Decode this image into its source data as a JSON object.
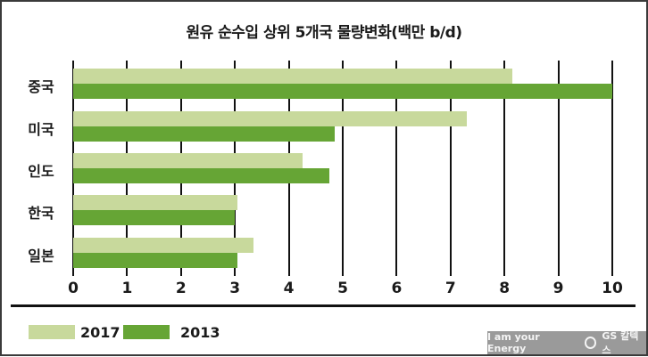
{
  "chart_data": {
    "type": "bar",
    "orientation": "horizontal",
    "title": "원유 순수입 상위 5개국 물량변화(백만 b/d)",
    "categories": [
      "중국",
      "미국",
      "인도",
      "한국",
      "일본"
    ],
    "series": [
      {
        "name": "2017",
        "color": "#c8d99c",
        "values": [
          8.15,
          7.3,
          4.25,
          3.05,
          3.35
        ]
      },
      {
        "name": "2013",
        "color": "#66a535",
        "values": [
          10.0,
          4.85,
          4.75,
          3.0,
          3.05
        ]
      }
    ],
    "xlabel": "",
    "ylabel": "",
    "xlim": [
      0,
      10
    ],
    "xticks": [
      "0",
      "1",
      "2",
      "3",
      "4",
      "5",
      "6",
      "7",
      "8",
      "9",
      "10"
    ],
    "grid": true,
    "legend_position": "bottom-left"
  },
  "branding": {
    "slogan": "I am your Energy",
    "company": "GS 칼텍스"
  }
}
